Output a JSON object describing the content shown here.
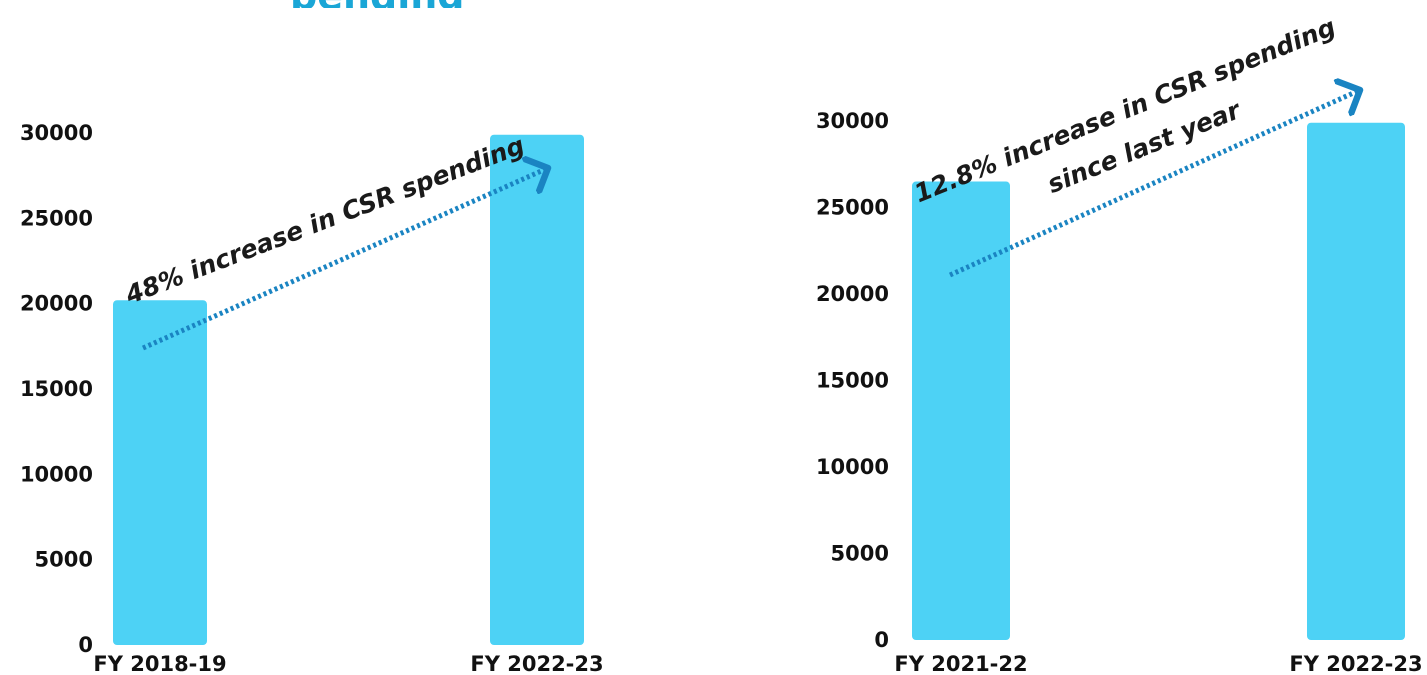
{
  "header": {
    "title_fragment": "pending"
  },
  "chart_data": [
    {
      "type": "bar",
      "categories": [
        "FY 2018-19",
        "FY 2022-23"
      ],
      "values": [
        20200,
        29900
      ],
      "ylim": [
        0,
        30000
      ],
      "yticks": [
        0,
        5000,
        10000,
        15000,
        20000,
        25000,
        30000
      ],
      "bar_color": "#4dd2f5",
      "arrow_color": "#1a84c2",
      "annotation": [
        "48% increase in CSR spending"
      ]
    },
    {
      "type": "bar",
      "categories": [
        "FY 2021-22",
        "FY 2022-23"
      ],
      "values": [
        26500,
        29900
      ],
      "ylim": [
        0,
        30000
      ],
      "yticks": [
        0,
        5000,
        10000,
        15000,
        20000,
        25000,
        30000
      ],
      "bar_color": "#4dd2f5",
      "arrow_color": "#1a84c2",
      "annotation": [
        "12.8% increase in CSR spending",
        "since last year"
      ]
    }
  ]
}
